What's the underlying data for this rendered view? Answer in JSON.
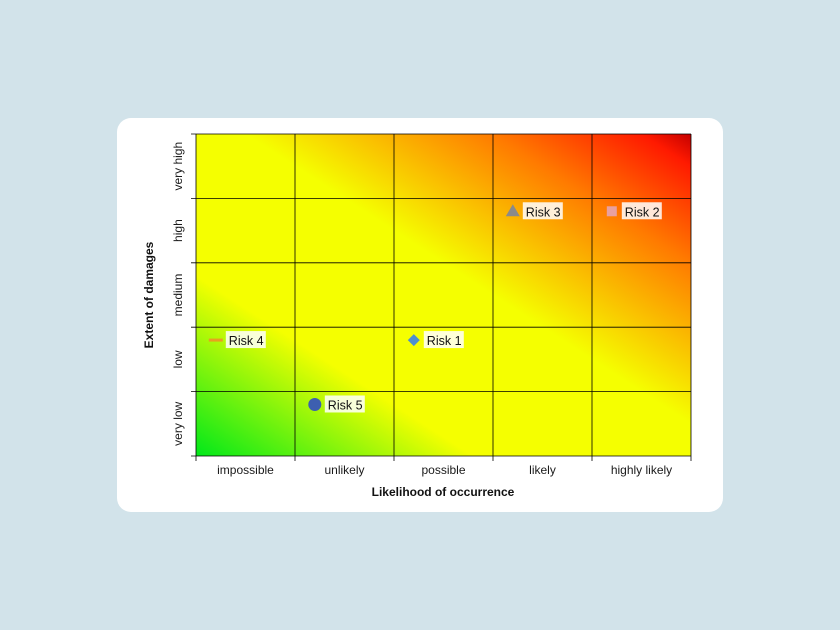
{
  "chart_data": {
    "type": "scatter",
    "xlabel": "Likelihood of occurrence",
    "ylabel": "Extent of damages",
    "x_categories": [
      "impossible",
      "unlikely",
      "possible",
      "likely",
      "highly  likely"
    ],
    "y_categories": [
      "very low",
      "low",
      "medium",
      "high",
      "very high"
    ],
    "xlim": [
      0,
      5
    ],
    "ylim": [
      0,
      5
    ],
    "grid": true,
    "background": "heatmap gradient green (bottom-left) to yellow to red (top-right)",
    "colors": {
      "green": "#00e81a",
      "yellow": "#f5ff00",
      "orange": "#ff7a00",
      "red": "#ff1a00",
      "darkred": "#c40000"
    },
    "points": [
      {
        "label": "Risk 1",
        "x": 2.2,
        "y": 1.8,
        "marker": "diamond",
        "color": "#4d8fcf"
      },
      {
        "label": "Risk 2",
        "x": 4.2,
        "y": 3.8,
        "marker": "square",
        "color": "#e8a0a0"
      },
      {
        "label": "Risk 3",
        "x": 3.2,
        "y": 3.8,
        "marker": "triangle",
        "color": "#8a8a8a"
      },
      {
        "label": "Risk 4",
        "x": 0.2,
        "y": 1.8,
        "marker": "dash",
        "color": "#e8a020"
      },
      {
        "label": "Risk 5",
        "x": 1.2,
        "y": 0.8,
        "marker": "circle",
        "color": "#3d5fb0"
      }
    ]
  }
}
